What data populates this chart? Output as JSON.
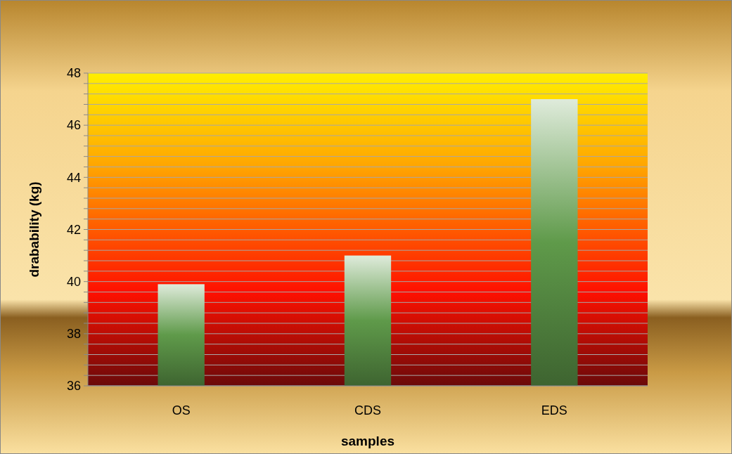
{
  "chart_data": {
    "type": "bar",
    "xlabel": "samples",
    "ylabel": "drabability (kg)",
    "categories": [
      "OS",
      "CDS",
      "EDS"
    ],
    "values": [
      39.9,
      41.0,
      47.0
    ],
    "color": "#5f9a4a",
    "ylim": [
      36,
      48
    ],
    "yticks": [
      36,
      {
        "value": 36.4,
        "label": null
      },
      {
        "value": 36.8,
        "label": null
      },
      {
        "value": 37.2,
        "label": null
      },
      {
        "value": 37.6,
        "label": null
      },
      38,
      {
        "value": 38.4,
        "label": null
      },
      {
        "value": 38.8,
        "label": null
      },
      {
        "value": 39.2,
        "label": null
      },
      {
        "value": 39.6,
        "label": null
      },
      40,
      {
        "value": 40.4,
        "label": null
      },
      {
        "value": 40.8,
        "label": null
      },
      {
        "value": 41.2,
        "label": null
      },
      {
        "value": 41.6,
        "label": null
      },
      42,
      {
        "value": 42.4,
        "label": null
      },
      {
        "value": 42.8,
        "label": null
      },
      {
        "value": 43.2,
        "label": null
      },
      {
        "value": 43.6,
        "label": null
      },
      44,
      {
        "value": 44.4,
        "label": null
      },
      {
        "value": 44.8,
        "label": null
      },
      {
        "value": 45.2,
        "label": null
      },
      {
        "value": 45.6,
        "label": null
      },
      46,
      {
        "value": 46.4,
        "label": null
      },
      {
        "value": 46.8,
        "label": null
      },
      {
        "value": 47.2,
        "label": null
      },
      {
        "value": 47.6,
        "label": null
      },
      48
    ],
    "grid": true
  }
}
